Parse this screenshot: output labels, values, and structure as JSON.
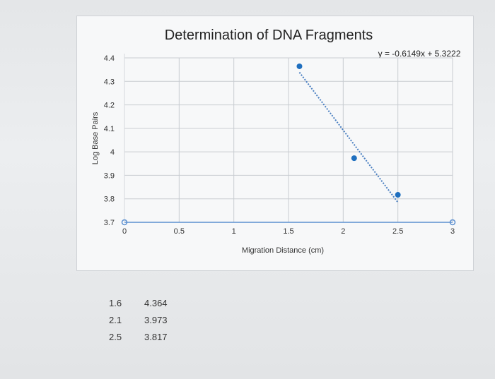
{
  "chart_data": {
    "type": "scatter",
    "title": "Determination of DNA Fragments",
    "xlabel": "Migration Distance (cm)",
    "ylabel": "Log Base Pairs",
    "xlim": [
      0,
      3
    ],
    "ylim": [
      3.7,
      4.4
    ],
    "x_ticks": [
      "0",
      "0.5",
      "1",
      "1.5",
      "2",
      "2.5",
      "3"
    ],
    "y_ticks": [
      "3.7",
      "3.8",
      "3.9",
      "4",
      "4.1",
      "4.2",
      "4.3",
      "4.4"
    ],
    "grid": true,
    "series": [
      {
        "x": [
          1.6,
          2.1,
          2.5
        ],
        "y": [
          4.364,
          3.973,
          3.817
        ]
      }
    ],
    "trendline": {
      "type": "linear",
      "slope": -0.6149,
      "intercept": 5.3222,
      "equation": "y = -0.6149x + 5.3222"
    },
    "colors": {
      "marker": "#1f6fbf",
      "trendline": "#4a7fc1",
      "grid": "#c8ccd1"
    }
  },
  "table": {
    "rows": [
      [
        "1.6",
        "4.364"
      ],
      [
        "2.1",
        "3.973"
      ],
      [
        "2.5",
        "3.817"
      ]
    ]
  }
}
